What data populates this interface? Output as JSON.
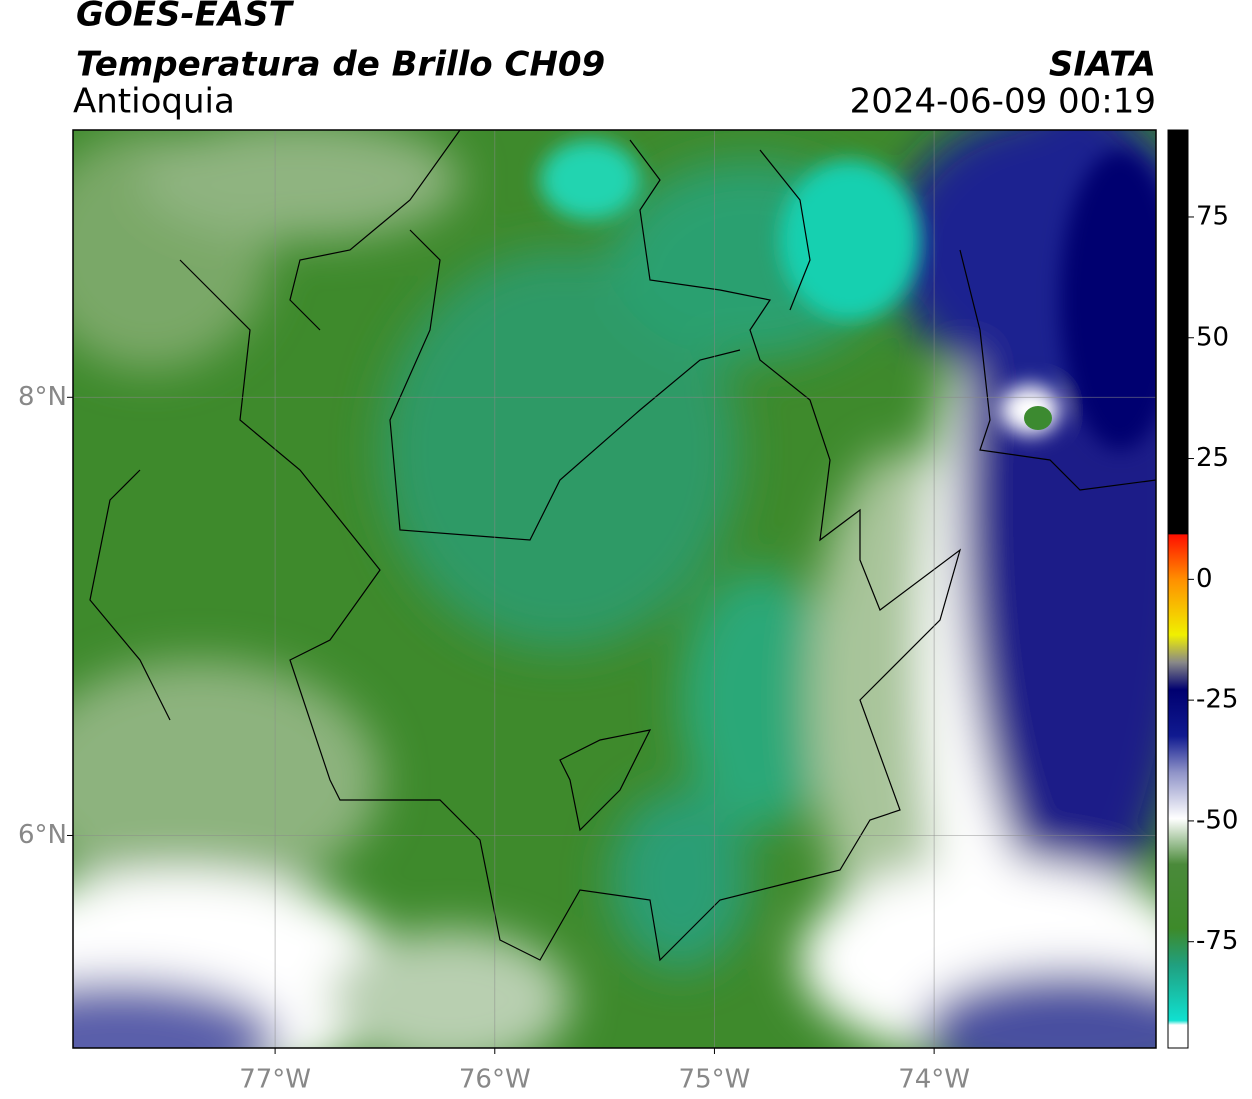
{
  "title": "GOES-EAST",
  "subtitle": "Temperatura de Brillo CH09",
  "region": "Antioquia",
  "source": "SIATA",
  "timestamp": "2024-06-09 00:19",
  "map": {
    "xlim": [
      -77.92,
      -72.99
    ],
    "ylim": [
      5.03,
      9.22
    ],
    "grid": true,
    "xticks": [
      {
        "value": -77,
        "label": "77°W"
      },
      {
        "value": -76,
        "label": "76°W"
      },
      {
        "value": -75,
        "label": "75°W"
      },
      {
        "value": -74,
        "label": "74°W"
      }
    ],
    "yticks": [
      {
        "value": 8,
        "label": "8°N"
      },
      {
        "value": 6,
        "label": "6°N"
      }
    ]
  },
  "colorbar": {
    "lim": [
      -97,
      93
    ],
    "ticks": [
      75,
      50,
      25,
      0,
      -25,
      -50,
      -75
    ]
  }
}
